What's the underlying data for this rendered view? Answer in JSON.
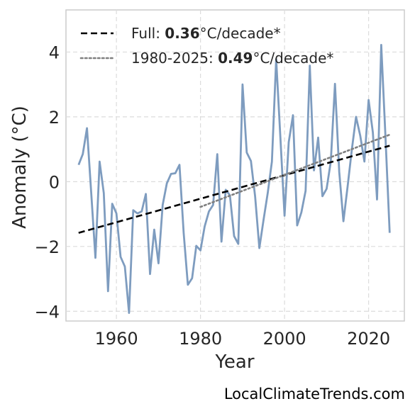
{
  "chart_data": {
    "type": "line",
    "xlabel": "Year",
    "ylabel": "Anomaly (°C)",
    "xlim": [
      1948,
      2028.5
    ],
    "ylim": [
      -4.3,
      5.3
    ],
    "xticks": [
      1960,
      1980,
      2000,
      2020
    ],
    "yticks": [
      -4,
      -2,
      0,
      2,
      4
    ],
    "ytick_labels": [
      "−4",
      "−2",
      "0",
      "2",
      "4"
    ],
    "grid": true,
    "legend_position": "top-left",
    "series": [
      {
        "style": "solid",
        "color": "#7e9cbf",
        "x": [
          1951,
          1952,
          1953,
          1954,
          1955,
          1956,
          1957,
          1958,
          1959,
          1960,
          1961,
          1962,
          1963,
          1964,
          1965,
          1966,
          1967,
          1968,
          1969,
          1970,
          1971,
          1972,
          1973,
          1974,
          1975,
          1976,
          1977,
          1978,
          1979,
          1980,
          1981,
          1982,
          1983,
          1984,
          1985,
          1986,
          1987,
          1988,
          1989,
          1990,
          1991,
          1992,
          1993,
          1994,
          1995,
          1996,
          1997,
          1998,
          1999,
          2000,
          2001,
          2002,
          2003,
          2004,
          2005,
          2006,
          2007,
          2008,
          2009,
          2010,
          2011,
          2012,
          2013,
          2014,
          2015,
          2016,
          2017,
          2018,
          2019,
          2020,
          2021,
          2022,
          2023,
          2024,
          2025
        ],
        "y": [
          0.52,
          0.85,
          1.65,
          -0.35,
          -2.35,
          0.62,
          -0.35,
          -3.38,
          -0.68,
          -0.98,
          -2.32,
          -2.62,
          -4.05,
          -0.88,
          -0.98,
          -0.92,
          -0.38,
          -2.85,
          -1.48,
          -2.52,
          -0.72,
          -0.05,
          0.24,
          0.26,
          0.52,
          -1.58,
          -3.18,
          -2.98,
          -1.98,
          -2.12,
          -1.38,
          -0.92,
          -0.72,
          0.85,
          -1.85,
          -0.25,
          -0.42,
          -1.68,
          -1.92,
          3.0,
          0.9,
          0.64,
          -0.45,
          -2.05,
          -1.18,
          -0.35,
          0.62,
          3.78,
          1.38,
          -1.05,
          1.22,
          2.05,
          -1.35,
          -0.95,
          -0.28,
          3.58,
          0.35,
          1.36,
          -0.45,
          -0.22,
          0.62,
          3.02,
          0.3,
          -1.22,
          -0.15,
          0.98,
          2.0,
          1.42,
          0.62,
          2.52,
          1.52,
          -0.55,
          4.22,
          1.42,
          -1.58
        ]
      },
      {
        "name": "Full: 0.36°C/decade*",
        "style": "dashed",
        "color": "#000000",
        "x": [
          1951,
          2025
        ],
        "y": [
          -1.58,
          1.11
        ]
      },
      {
        "name": "1980-2025: 0.49°C/decade*",
        "style": "dotted",
        "color": "#7f7f7f",
        "x": [
          1980,
          2025
        ],
        "y": [
          -0.78,
          1.45
        ]
      }
    ],
    "legend": [
      {
        "prefix": "Full: ",
        "value": "0.36",
        "suffix": "°C/decade*",
        "style": "dashed",
        "color": "#000000"
      },
      {
        "prefix": "1980-2025: ",
        "value": "0.49",
        "suffix": "°C/decade*",
        "style": "dotted",
        "color": "#7f7f7f"
      }
    ]
  },
  "watermark": "LocalClimateTrends.com"
}
